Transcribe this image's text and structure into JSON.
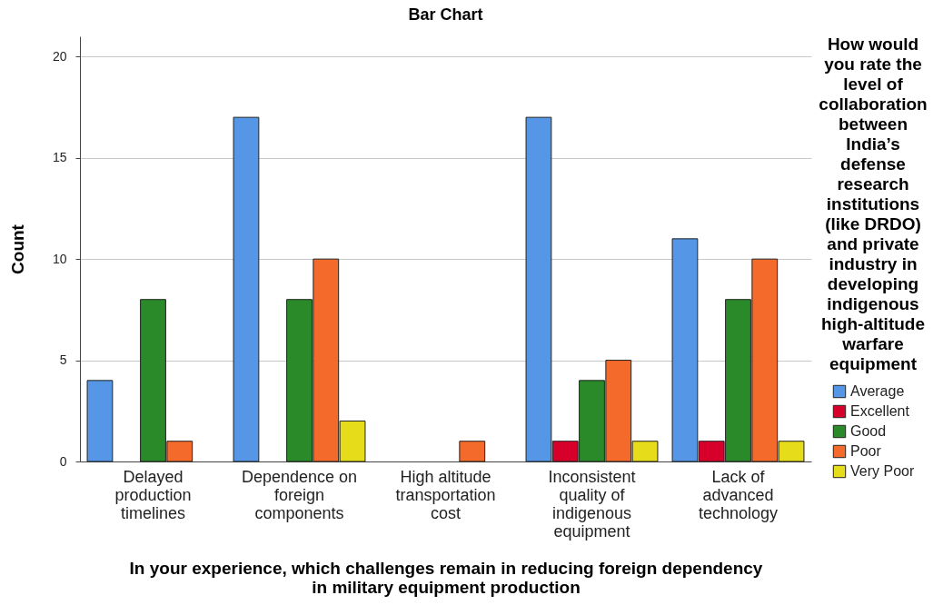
{
  "chart_data": {
    "type": "bar",
    "title": "Bar Chart",
    "xlabel": "In your experience, which challenges remain in reducing foreign dependency in military equipment production",
    "ylabel": "Count",
    "legend_title": "How would you rate the level of collaboration between India’s defense research institutions (like DRDO) and private industry in developing indigenous high-altitude warfare equipment",
    "categories": [
      "Delayed production timelines",
      "Dependence on foreign components",
      "High altitude transportation cost",
      "Inconsistent quality of indigenous equipment",
      "Lack of advanced technology"
    ],
    "series": [
      {
        "name": "Average",
        "color": "#5596e6",
        "values": [
          4,
          17,
          null,
          17,
          11
        ]
      },
      {
        "name": "Excellent",
        "color": "#d6002a",
        "values": [
          null,
          null,
          null,
          1,
          1
        ]
      },
      {
        "name": "Good",
        "color": "#2a8a2a",
        "values": [
          8,
          8,
          null,
          4,
          8
        ]
      },
      {
        "name": "Poor",
        "color": "#f46a2a",
        "values": [
          1,
          10,
          1,
          5,
          10
        ]
      },
      {
        "name": "Very Poor",
        "color": "#e6dc1a",
        "values": [
          null,
          2,
          null,
          1,
          1
        ]
      }
    ],
    "ylim": [
      0,
      21
    ],
    "yticks": [
      0,
      5,
      10,
      15,
      20
    ],
    "grid": "y",
    "legend": "right"
  }
}
